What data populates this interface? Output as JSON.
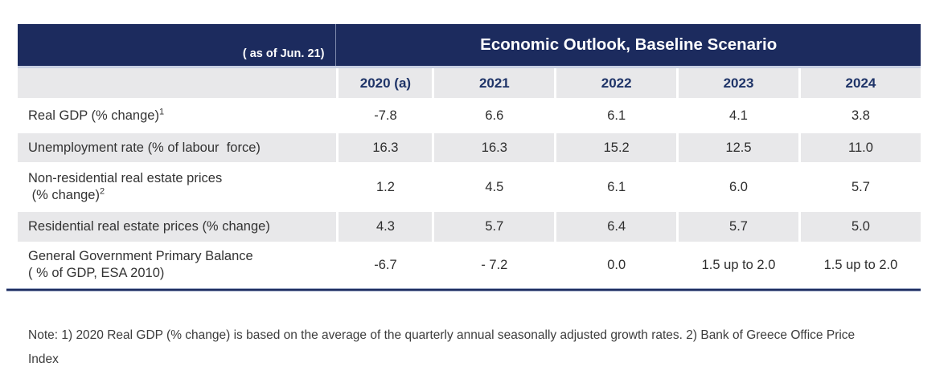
{
  "colors": {
    "navy_band": "#1c2b5e",
    "header_text": "#ffffff",
    "year_text": "#1f3468",
    "shaded_row": "#e8e8ea",
    "body_text": "#333333"
  },
  "table": {
    "as_of_label": "( as of Jun. 21)",
    "title": "Economic Outlook, Baseline Scenario",
    "columns": [
      "2020 (a)",
      "2021",
      "2022",
      "2023",
      "2024"
    ],
    "rows": [
      {
        "label_lines": [
          {
            "text": "Real GDP (% change)",
            "sup": "1"
          }
        ],
        "values": [
          "-7.8",
          "6.6",
          "6.1",
          "4.1",
          "3.8"
        ],
        "shaded": false
      },
      {
        "label_lines": [
          {
            "text": "Unemployment rate (% of labour  force)"
          }
        ],
        "values": [
          "16.3",
          "16.3",
          "15.2",
          "12.5",
          "11.0"
        ],
        "shaded": true
      },
      {
        "label_lines": [
          {
            "text": "Non-residential real estate prices"
          },
          {
            "text": " (% change)",
            "sup": "2"
          }
        ],
        "values": [
          "1.2",
          "4.5",
          "6.1",
          "6.0",
          "5.7"
        ],
        "shaded": false
      },
      {
        "label_lines": [
          {
            "text": "Residential real estate prices (% change)"
          }
        ],
        "values": [
          "4.3",
          "5.7",
          "6.4",
          "5.7",
          "5.0"
        ],
        "shaded": true
      },
      {
        "label_lines": [
          {
            "text": "General Government Primary Balance"
          },
          {
            "text": "( % of GDP, ESA 2010)"
          }
        ],
        "values": [
          "-6.7",
          "- 7.2",
          "0.0",
          "1.5 up to 2.0",
          "1.5 up to 2.0"
        ],
        "shaded": false
      }
    ]
  },
  "note": {
    "line1": "Note: 1) 2020 Real GDP (% change) is based on the average of the quarterly annual seasonally adjusted growth rates. 2) Bank of Greece Office Price",
    "line2": "Index"
  }
}
